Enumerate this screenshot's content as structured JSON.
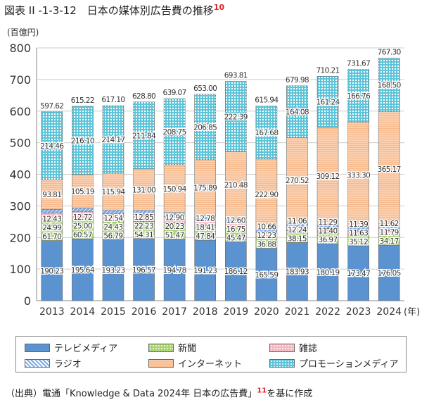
{
  "title": {
    "text": "図表 II -1-3-12　日本の媒体別広告費の推移",
    "footnote": "10"
  },
  "source": {
    "prefix": "（出典）電通「Knowledge & Data 2024年 日本の広告費」",
    "footnote": "11",
    "suffix": "を基に作成"
  },
  "chart_data": {
    "type": "bar",
    "stacked": true,
    "ylabel": "(百億円)",
    "xlabel": "(年)",
    "ylim": [
      0,
      800
    ],
    "yticks": [
      0,
      100,
      200,
      300,
      400,
      500,
      600,
      700,
      800
    ],
    "grid": true,
    "legend_position": "bottom",
    "categories": [
      "2013",
      "2014",
      "2015",
      "2016",
      "2017",
      "2018",
      "2019",
      "2020",
      "2021",
      "2022",
      "2023",
      "2024"
    ],
    "series": [
      {
        "name": "テレビメディア",
        "color": "#5b93d1",
        "pattern": "solid",
        "values": [
          190.23,
          195.64,
          193.23,
          196.57,
          194.78,
          191.23,
          186.12,
          165.59,
          183.93,
          180.19,
          173.47,
          176.05
        ]
      },
      {
        "name": "新聞",
        "color": "#a6d46a",
        "pattern": "dots",
        "values": [
          61.7,
          60.57,
          56.79,
          54.31,
          51.47,
          47.84,
          45.47,
          36.88,
          38.15,
          36.97,
          35.12,
          34.17
        ]
      },
      {
        "name": "雑誌",
        "color": "#f4b6c0",
        "pattern": "dots",
        "values": [
          24.99,
          25.0,
          24.43,
          22.23,
          20.23,
          18.41,
          16.75,
          12.23,
          12.24,
          11.4,
          11.63,
          11.79
        ]
      },
      {
        "name": "ラジオ",
        "color": "#7fa8e0",
        "pattern": "hatch",
        "values": [
          12.43,
          12.72,
          12.54,
          12.85,
          12.9,
          12.78,
          12.6,
          10.66,
          11.06,
          11.29,
          11.39,
          11.62
        ]
      },
      {
        "name": "インターネット",
        "color": "#f7b98a",
        "pattern": "lines",
        "values": [
          93.81,
          105.19,
          115.94,
          131.0,
          150.94,
          175.89,
          210.48,
          222.9,
          270.52,
          309.12,
          333.3,
          365.17
        ]
      },
      {
        "name": "プロモーションメディア",
        "color": "#5cc4d8",
        "pattern": "grid",
        "values": [
          214.46,
          216.1,
          214.17,
          211.84,
          208.75,
          206.85,
          222.39,
          167.68,
          164.08,
          161.24,
          166.76,
          168.5
        ]
      }
    ],
    "totals": [
      "597.62",
      "615.22",
      "617.10",
      "628.80",
      "639.07",
      "653.00",
      "693.81",
      "615.94",
      "679.98",
      "710.21",
      "731.67",
      "767.30"
    ]
  },
  "legend_layout": [
    [
      0,
      1,
      2
    ],
    [
      3,
      4,
      5
    ]
  ]
}
